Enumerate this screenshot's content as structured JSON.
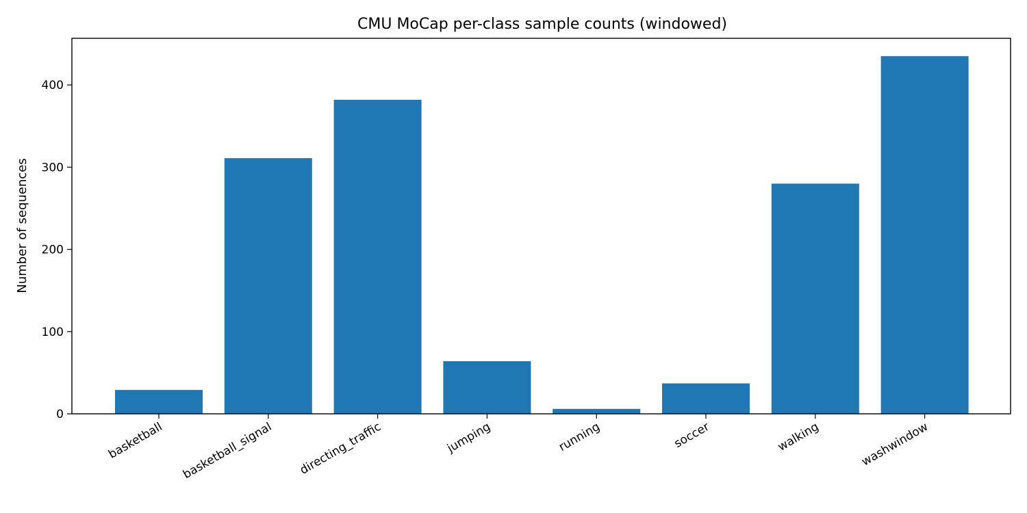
{
  "chart_data": {
    "type": "bar",
    "title": "CMU MoCap per-class sample counts (windowed)",
    "xlabel": "",
    "ylabel": "Number of sequences",
    "categories": [
      "basketball",
      "basketball_signal",
      "directing_traffic",
      "jumping",
      "running",
      "soccer",
      "walking",
      "washwindow"
    ],
    "values": [
      29,
      311,
      382,
      64,
      6,
      37,
      280,
      435
    ],
    "ylim": [
      0,
      456.75
    ],
    "yticks": [
      0,
      100,
      200,
      300,
      400
    ],
    "bar_color": "#1f77b4",
    "grid": false
  }
}
